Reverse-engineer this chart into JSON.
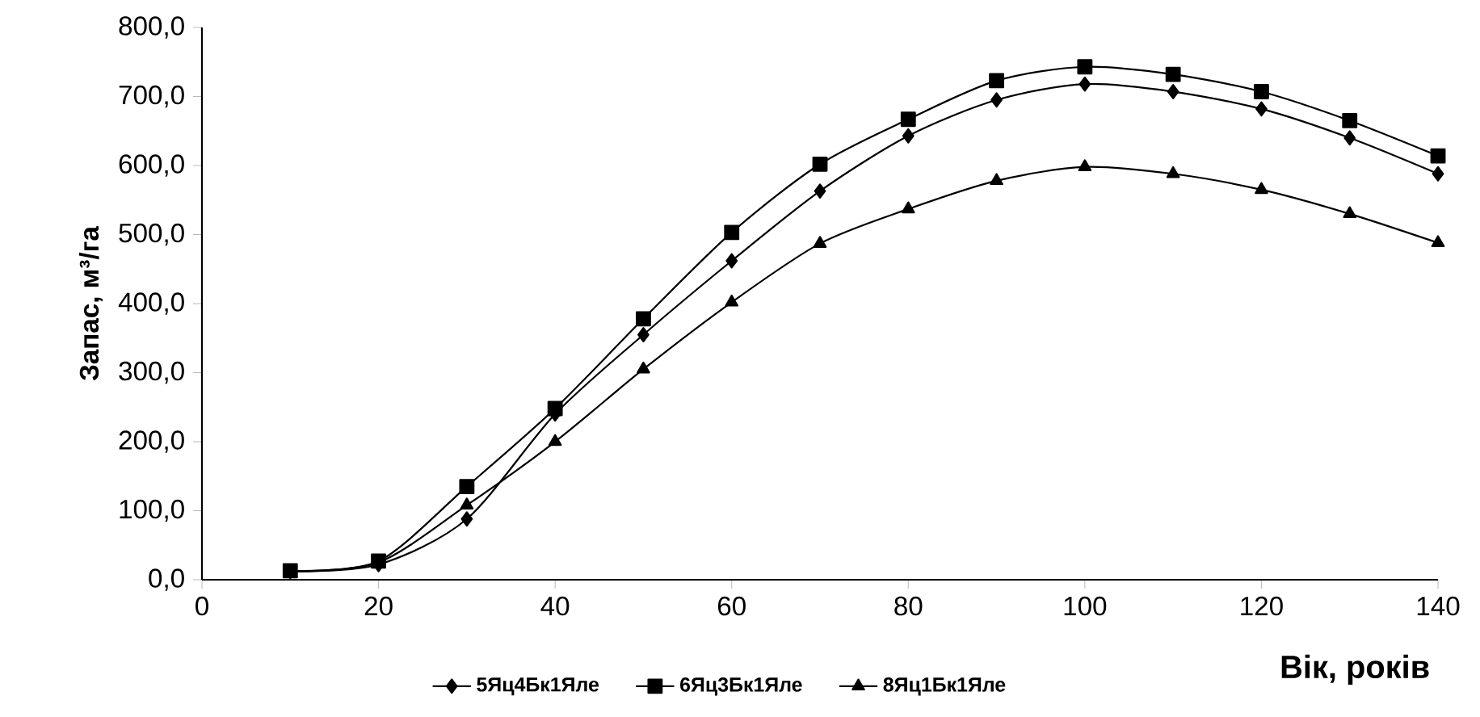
{
  "chart_data": {
    "type": "line",
    "xlabel": "Вік, років",
    "ylabel": "Запас, м³/га",
    "x": [
      10,
      20,
      30,
      40,
      50,
      60,
      70,
      80,
      90,
      100,
      110,
      120,
      130,
      140
    ],
    "series": [
      {
        "name": "5Яц4Бк1Яле",
        "color": "#000000",
        "marker": "diamond",
        "values": [
          12,
          22,
          88,
          240,
          355,
          462,
          563,
          643,
          695,
          718,
          707,
          682,
          640,
          588
        ]
      },
      {
        "name": "6Яц3Бк1Яле",
        "color": "#000000",
        "marker": "square",
        "values": [
          13,
          27,
          135,
          248,
          378,
          503,
          602,
          667,
          723,
          743,
          732,
          707,
          665,
          614
        ]
      },
      {
        "name": "8Яц1Бк1Яле",
        "color": "#000000",
        "marker": "triangle",
        "values": [
          12,
          25,
          108,
          200,
          305,
          402,
          487,
          537,
          578,
          598,
          588,
          565,
          530,
          488
        ]
      }
    ],
    "xlim": [
      0,
      140
    ],
    "xticks": [
      0,
      20,
      40,
      60,
      80,
      100,
      120,
      140
    ],
    "ylim": [
      0,
      800
    ],
    "yticks": [
      {
        "value": 0,
        "label": "0,0"
      },
      {
        "value": 100,
        "label": "100,0"
      },
      {
        "value": 200,
        "label": "200,0"
      },
      {
        "value": 300,
        "label": "300,0"
      },
      {
        "value": 400,
        "label": "400,0"
      },
      {
        "value": 500,
        "label": "500,0"
      },
      {
        "value": 600,
        "label": "600,0"
      },
      {
        "value": 700,
        "label": "700,0"
      },
      {
        "value": 800,
        "label": "800,0"
      }
    ],
    "legend": "bottom",
    "grid": false,
    "line_style": "solid"
  }
}
